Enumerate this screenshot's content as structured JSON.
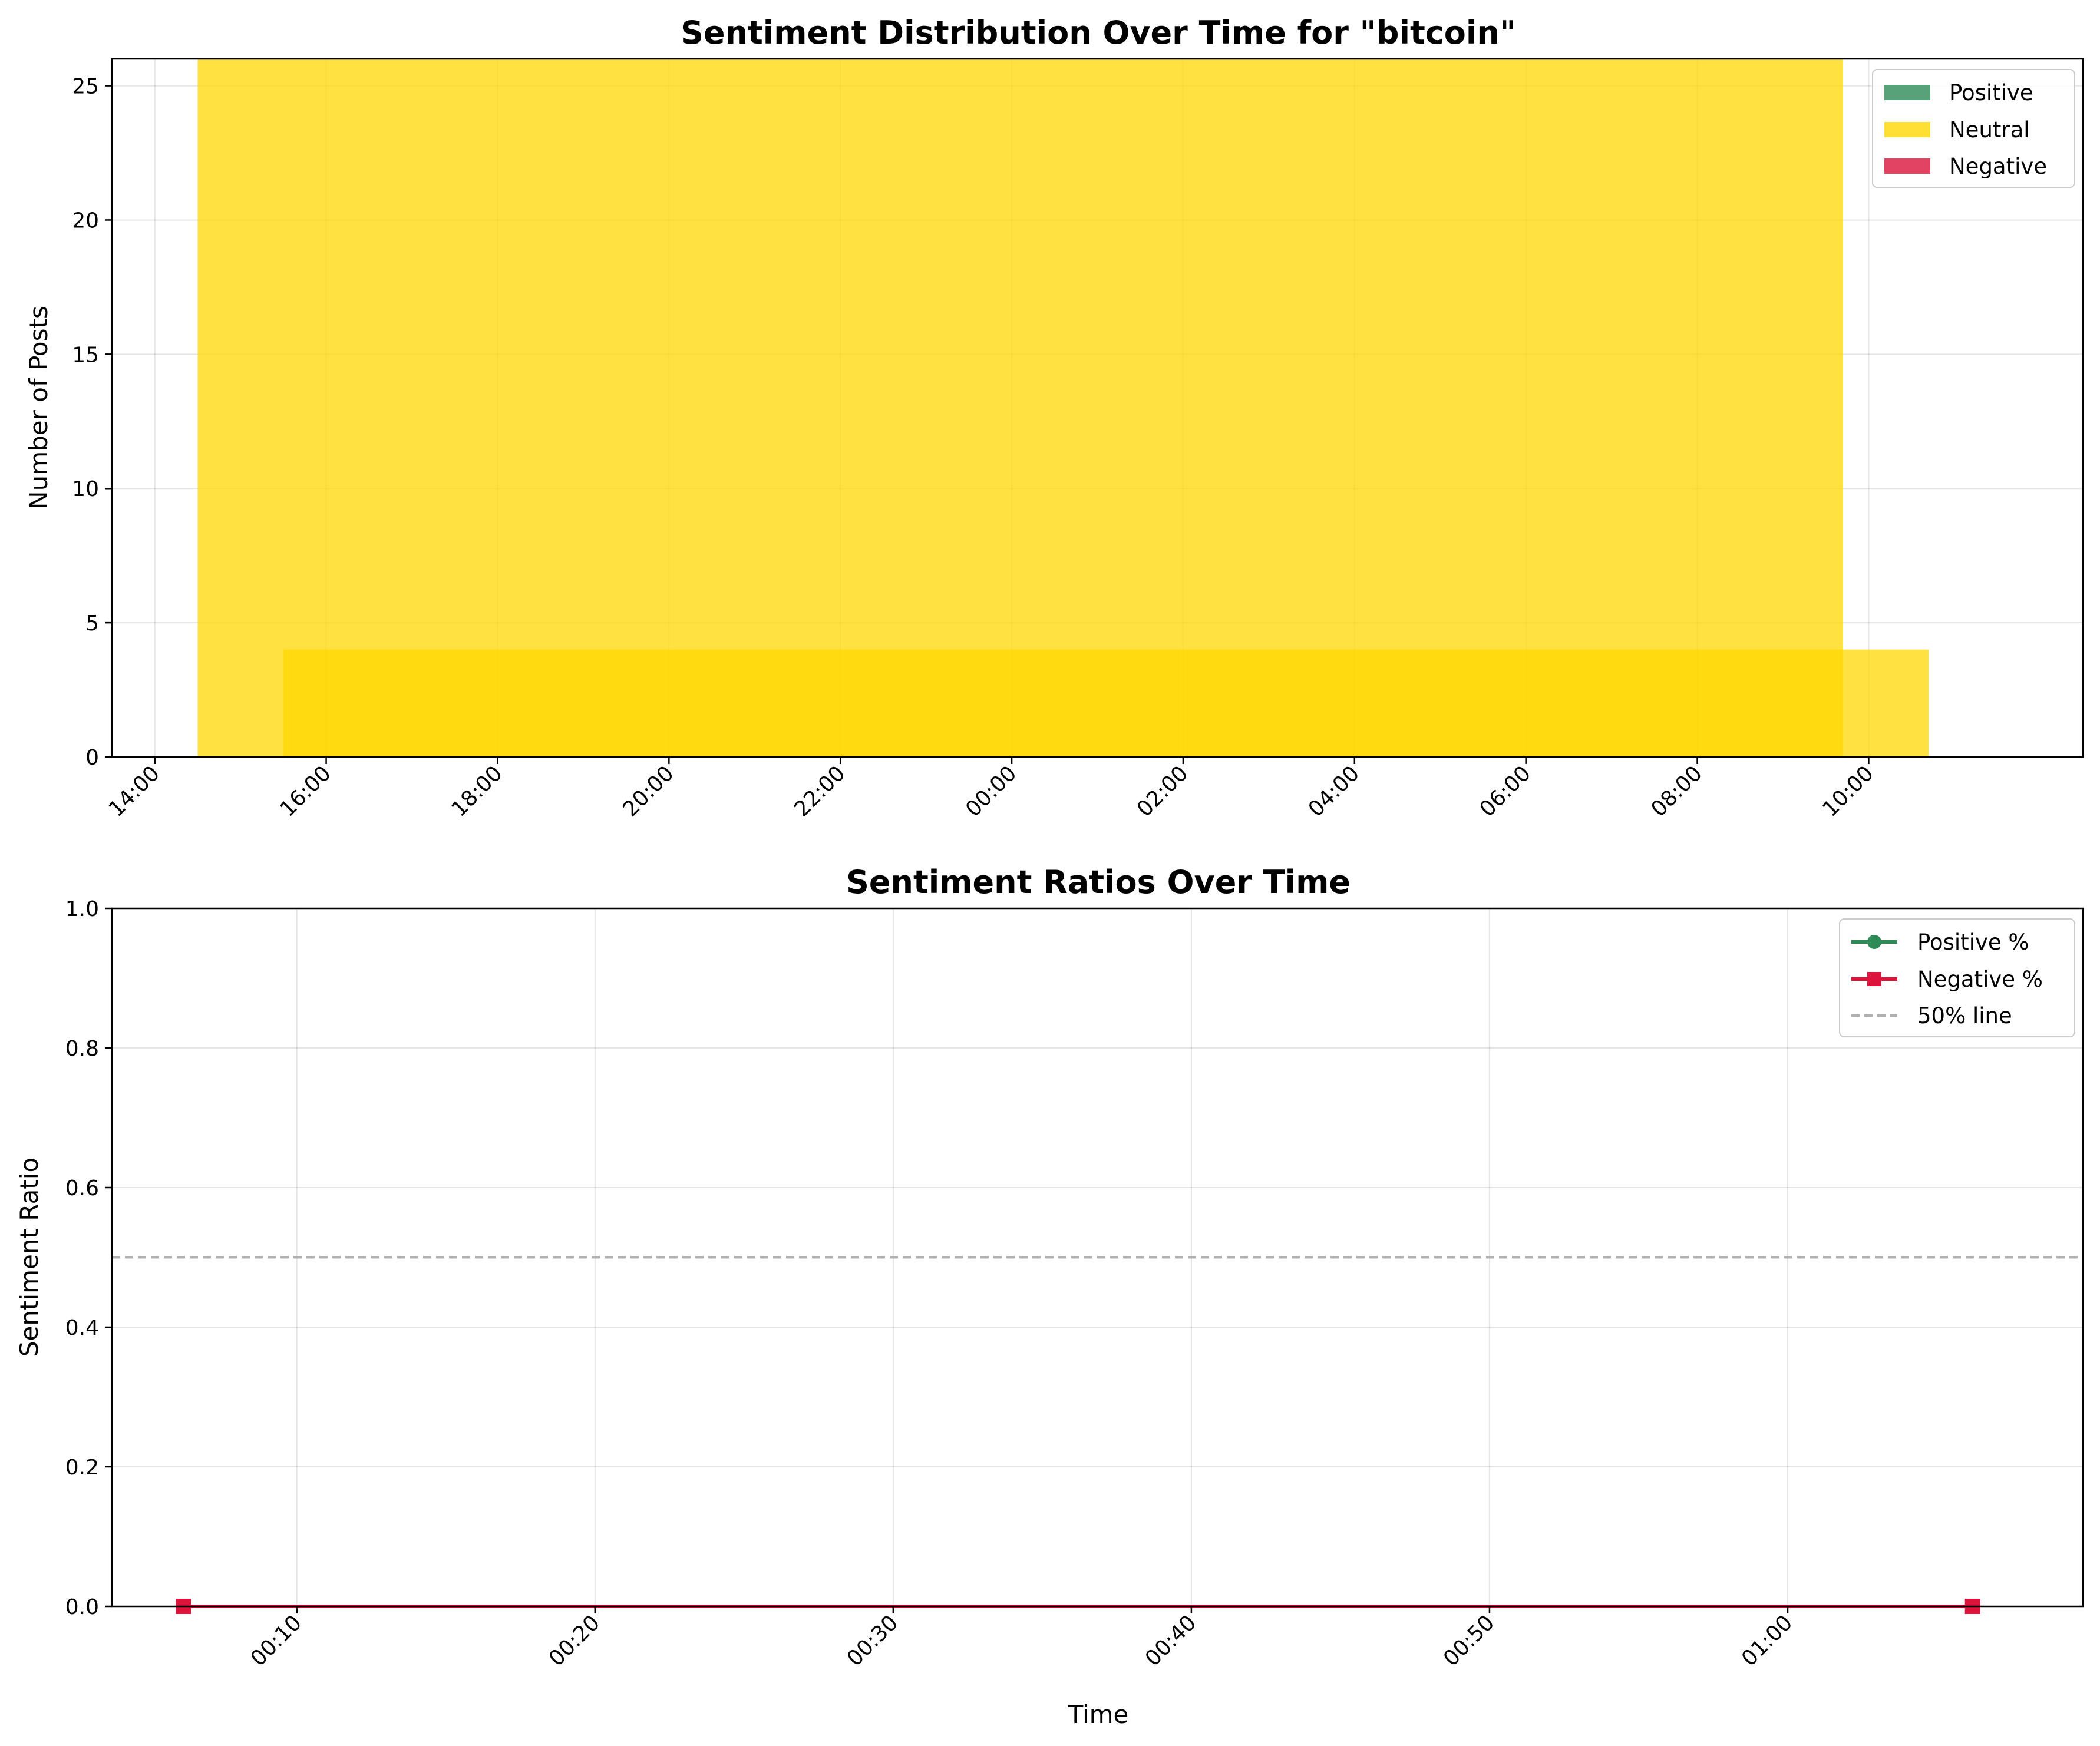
{
  "chart_data": [
    {
      "type": "bar",
      "title": "Sentiment Distribution Over Time for \"bitcoin\"",
      "xlabel": "",
      "ylabel": "Number of Posts",
      "xticks": [
        "14:00",
        "16:00",
        "18:00",
        "20:00",
        "22:00",
        "00:00",
        "02:00",
        "04:00",
        "06:00",
        "08:00",
        "10:00"
      ],
      "yticks": [
        "0",
        "5",
        "10",
        "15",
        "20",
        "25"
      ],
      "ylim": [
        0,
        26
      ],
      "xlim_hours": [
        13.5,
        36.5
      ],
      "grid": true,
      "legend_position": "top-right",
      "series": [
        {
          "name": "Positive",
          "color": "#2e8b57",
          "bars": []
        },
        {
          "name": "Neutral",
          "color": "#ffd700",
          "bars": [
            {
              "start_hour": 14.5,
              "end_hour": 33.7,
              "value": 26
            },
            {
              "start_hour": 15.5,
              "end_hour": 34.7,
              "value": 4
            }
          ]
        },
        {
          "name": "Negative",
          "color": "#dc143c",
          "bars": []
        }
      ]
    },
    {
      "type": "line",
      "title": "Sentiment Ratios Over Time",
      "xlabel": "Time",
      "ylabel": "Sentiment Ratio",
      "xticks": [
        "00:10",
        "00:20",
        "00:30",
        "00:40",
        "00:50",
        "01:00"
      ],
      "yticks": [
        "0.0",
        "0.2",
        "0.4",
        "0.6",
        "0.8",
        "1.0"
      ],
      "ylim": [
        0,
        1
      ],
      "xlim_minutes": [
        3.8,
        69.9
      ],
      "grid": true,
      "legend_position": "top-right",
      "series": [
        {
          "name": "Positive %",
          "color": "#2e8b57",
          "marker": "circle",
          "points": [
            {
              "minute": 6.2,
              "value": 0.0
            },
            {
              "minute": 66.2,
              "value": 0.0
            }
          ]
        },
        {
          "name": "Negative %",
          "color": "#dc143c",
          "marker": "square",
          "points": [
            {
              "minute": 6.2,
              "value": 0.0
            },
            {
              "minute": 66.2,
              "value": 0.0
            }
          ]
        },
        {
          "name": "50% line",
          "color": "#b0b0b0",
          "style": "dashed",
          "y": 0.5
        }
      ]
    }
  ]
}
